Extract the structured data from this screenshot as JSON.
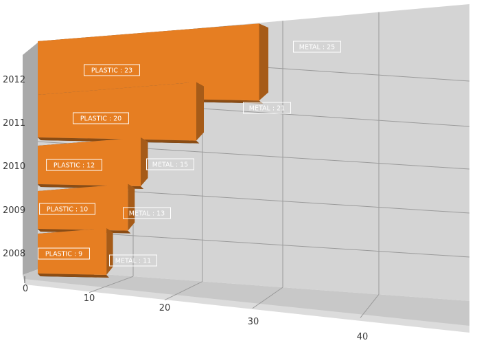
{
  "chart_data": {
    "type": "bar",
    "orientation": "horizontal",
    "stacked": true,
    "three_d": true,
    "categories": [
      "2008",
      "2009",
      "2010",
      "2011",
      "2012"
    ],
    "series": [
      {
        "name": "PLASTIC",
        "values": [
          9,
          10,
          12,
          20,
          23
        ],
        "color": "#34495e"
      },
      {
        "name": "METAL",
        "values": [
          11,
          13,
          15,
          21,
          25
        ],
        "color": "#e67e22"
      }
    ],
    "data_labels": [
      [
        "PLASTIC : 9",
        "PLASTIC : 10",
        "PLASTIC : 12",
        "PLASTIC : 20",
        "PLASTIC : 23"
      ],
      [
        "METAL : 11",
        "METAL : 13",
        "METAL : 15",
        "METAL : 21",
        "METAL : 25"
      ]
    ],
    "x_ticks": [
      "0",
      "10",
      "20",
      "30",
      "40"
    ],
    "xlim": [
      0,
      48
    ],
    "grid": true,
    "legend": "none",
    "title": "",
    "xlabel": "",
    "ylabel": ""
  }
}
